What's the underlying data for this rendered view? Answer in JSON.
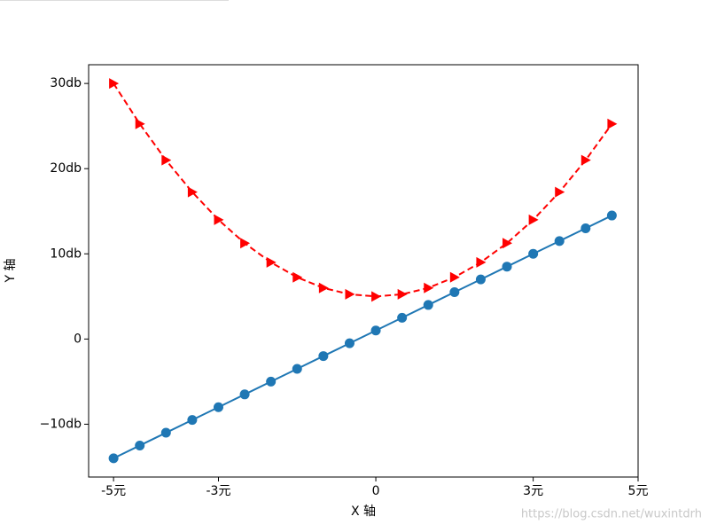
{
  "chart_data": {
    "type": "line",
    "x": [
      -5,
      -4.5,
      -4,
      -3.5,
      -3,
      -2.5,
      -2,
      -1.5,
      -1,
      -0.5,
      0,
      0.5,
      1,
      1.5,
      2,
      2.5,
      3,
      3.5,
      4,
      4.5
    ],
    "series": [
      {
        "color": "#1f77b4",
        "linestyle": "solid",
        "marker": "o",
        "values": [
          -14,
          -12.5,
          -11,
          -9.5,
          -8,
          -6.5,
          -5,
          -3.5,
          -2,
          -0.5,
          1,
          2.5,
          4,
          5.5,
          7,
          8.5,
          10,
          11.5,
          13,
          14.5
        ]
      },
      {
        "color": "#ff0000",
        "linestyle": "dashed",
        "marker": ">",
        "values": [
          30,
          25.25,
          21,
          17.25,
          14,
          11.25,
          9,
          7.25,
          6,
          5.25,
          5,
          5.25,
          6,
          7.25,
          9,
          11.25,
          14,
          17.25,
          21,
          25.25
        ]
      }
    ],
    "xlim": [
      -5.475,
      5
    ],
    "ylim": [
      -16.2,
      32.2
    ],
    "xticks": [
      {
        "value": -5,
        "label": "-5元"
      },
      {
        "value": -3,
        "label": "-3元"
      },
      0,
      {
        "value": 3,
        "label": "3元"
      },
      {
        "value": 5,
        "label": "5元"
      }
    ],
    "yticks": [
      {
        "value": -10,
        "label": "−10db"
      },
      0,
      {
        "value": 10,
        "label": "10db"
      },
      {
        "value": 20,
        "label": "20db"
      },
      {
        "value": 30,
        "label": "30db"
      }
    ],
    "xlabel": "X 轴",
    "ylabel": "Y 轴",
    "watermark": "https://blog.csdn.net/wuxintdrh"
  }
}
